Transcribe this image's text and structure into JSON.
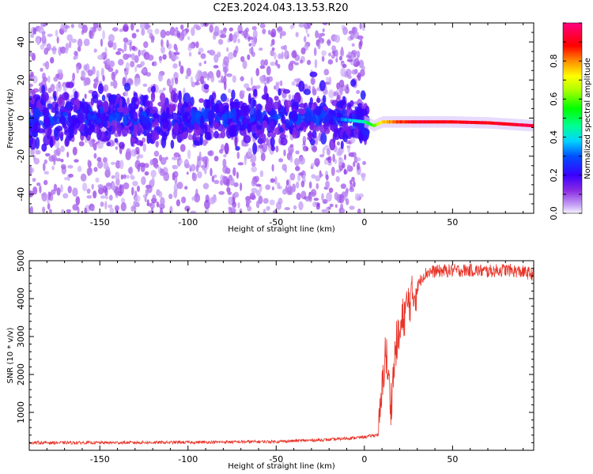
{
  "page": {
    "title": "C2E3.2024.043.13.53.R20"
  },
  "chart_data": [
    {
      "type": "heatmap",
      "title": "C2E3.2024.043.13.53.R20",
      "xlabel": "Height of straight line (km)",
      "ylabel": "Frequency (Hz)",
      "xlim": [
        -190,
        96
      ],
      "ylim": [
        -50,
        50
      ],
      "x_ticks": [
        -150,
        -100,
        -50,
        0,
        50
      ],
      "y_ticks": [
        -40,
        -20,
        0,
        20,
        40
      ],
      "colorbar": {
        "label": "Normalized spectral amplitude",
        "range": [
          0.0,
          1.0
        ],
        "ticks": [
          0.0,
          0.2,
          0.4,
          0.6,
          0.8
        ],
        "colormap": "rainbow (violet-blue-cyan-green-yellow-red-magenta)"
      },
      "ridge": {
        "x": [
          -190,
          -150,
          -100,
          -50,
          -20,
          -10,
          0,
          5,
          10,
          20,
          30,
          50,
          70,
          95
        ],
        "freq": [
          0,
          0,
          0,
          0,
          0,
          -1,
          -2,
          -4,
          -2,
          -2,
          -2,
          -2,
          -2.5,
          -4
        ],
        "amplitude": [
          0.15,
          0.15,
          0.15,
          0.18,
          0.22,
          0.35,
          0.45,
          0.6,
          0.75,
          0.85,
          0.9,
          0.9,
          0.9,
          0.95
        ]
      }
    },
    {
      "type": "line",
      "xlabel": "Height of straight line (km)",
      "ylabel": "SNR (10 * v/v)",
      "xlim": [
        -190,
        96
      ],
      "ylim": [
        0,
        5000
      ],
      "x_ticks": [
        -150,
        -100,
        -50,
        0,
        50
      ],
      "y_ticks": [
        1000,
        2000,
        3000,
        4000,
        5000
      ],
      "series": [
        {
          "color": "#e8352a",
          "x": [
            -190,
            -150,
            -100,
            -50,
            -20,
            0,
            5,
            8,
            10,
            12,
            15,
            18,
            20,
            22,
            25,
            28,
            30,
            33,
            36,
            40,
            50,
            60,
            70,
            80,
            90,
            95
          ],
          "y": [
            180,
            180,
            190,
            210,
            260,
            330,
            370,
            400,
            1500,
            2700,
            1200,
            2800,
            3000,
            3500,
            3900,
            4100,
            4300,
            4600,
            4700,
            4720,
            4740,
            4750,
            4720,
            4760,
            4700,
            4650
          ]
        }
      ]
    }
  ]
}
